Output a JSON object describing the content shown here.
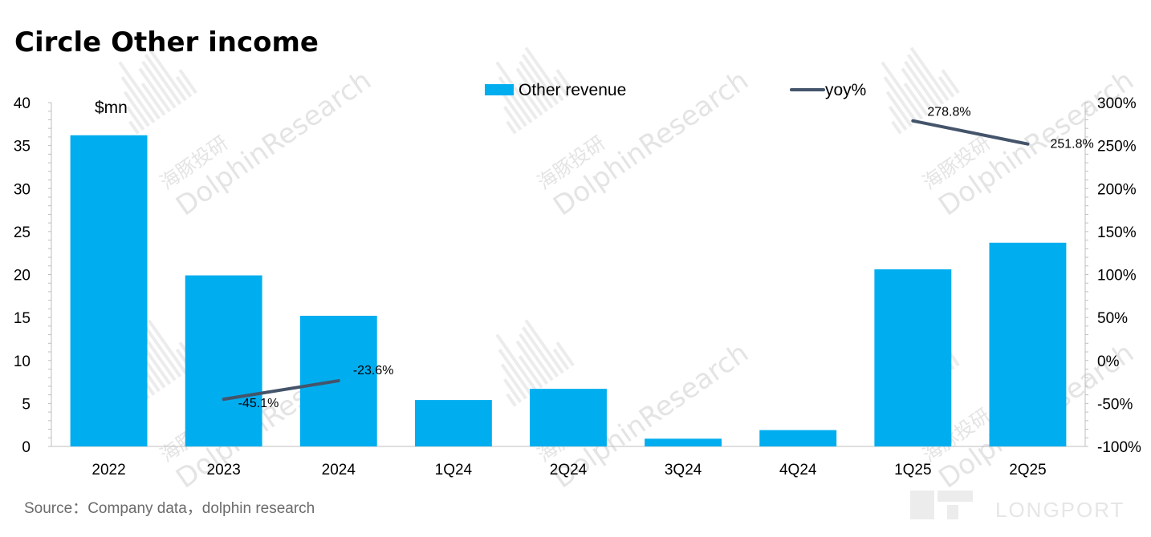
{
  "title": "Circle Other income",
  "unit": "$mn",
  "source": "Source：Company data，dolphin research",
  "watermark": {
    "text": "DolphinResearch",
    "cn": "海豚投研",
    "logo": "LONGPORT"
  },
  "colors": {
    "bar": "#00adef",
    "line": "#44546a"
  },
  "chart_data": {
    "type": "bar",
    "categories": [
      "2022",
      "2023",
      "2024",
      "1Q24",
      "2Q24",
      "3Q24",
      "4Q24",
      "1Q25",
      "2Q25"
    ],
    "series": [
      {
        "name": "Other revenue",
        "type": "bar",
        "axis": "left",
        "values": [
          36.2,
          19.9,
          15.2,
          5.4,
          6.7,
          0.9,
          1.9,
          20.6,
          23.7
        ]
      },
      {
        "name": "yoy%",
        "type": "line",
        "axis": "right",
        "values": [
          null,
          -45.1,
          -23.6,
          null,
          null,
          null,
          null,
          278.8,
          251.8
        ],
        "segments": [
          [
            1,
            2
          ],
          [
            7,
            8
          ]
        ],
        "labels": [
          "",
          "-45.1%",
          "-23.6%",
          "",
          "",
          "",
          "",
          "278.8%",
          "251.8%"
        ]
      }
    ],
    "ylim": [
      0,
      40
    ],
    "yticks": [
      "0",
      "5",
      "10",
      "15",
      "20",
      "25",
      "30",
      "35",
      "40"
    ],
    "y2lim": [
      -100,
      300
    ],
    "y2ticks": [
      "-100%",
      "-50%",
      "0%",
      "50%",
      "100%",
      "150%",
      "200%",
      "250%",
      "300%"
    ],
    "legend_position": "top",
    "grid": false
  }
}
